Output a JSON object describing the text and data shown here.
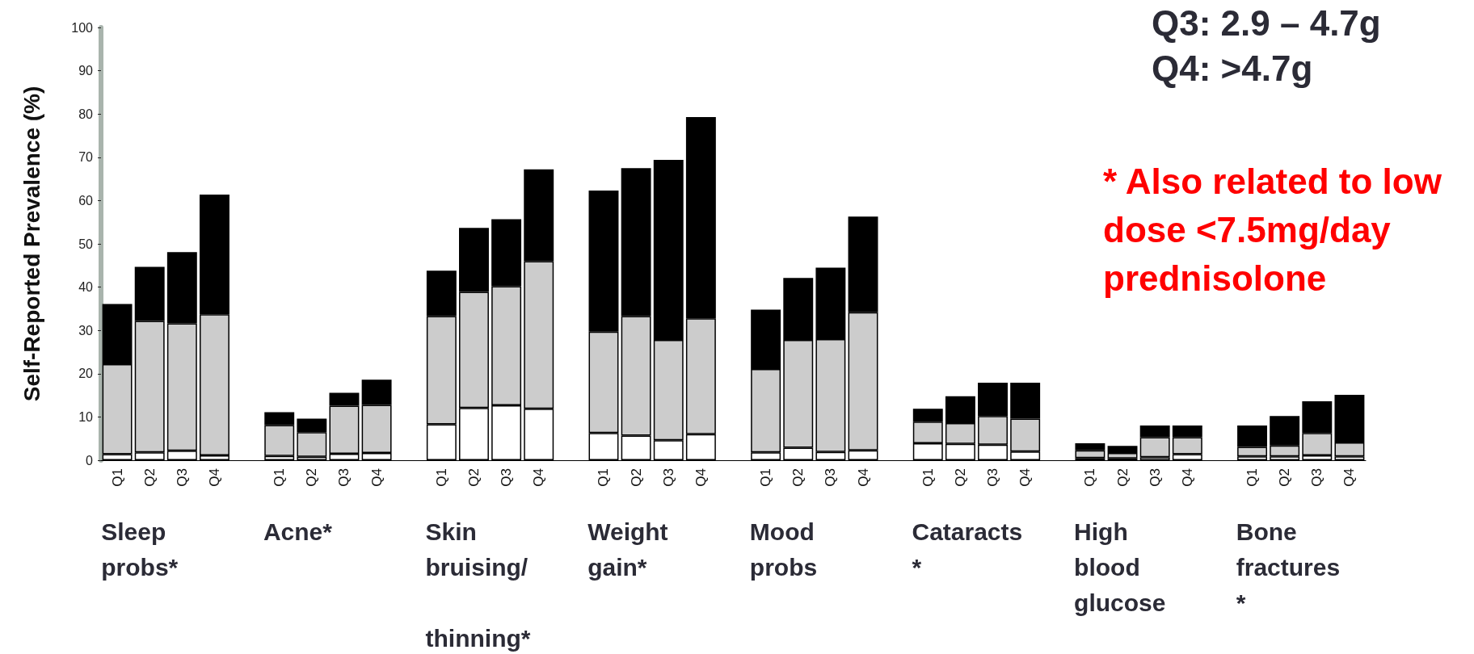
{
  "chart_data": {
    "type": "bar",
    "stacked": true,
    "ylabel": "Self-Reported Prevalence (%)",
    "categories": [
      "Q1",
      "Q2",
      "Q3",
      "Q4",
      null,
      "Q1",
      "Q2",
      "Q3",
      "Q4",
      null,
      "Q1",
      "Q2",
      "Q3",
      "Q4",
      null,
      "Q1",
      "Q2",
      "Q3",
      "Q4",
      null,
      "Q1",
      "Q2",
      "Q3",
      "Q4",
      null,
      "Q1",
      "Q2",
      "Q3",
      "Q4",
      null,
      "Q1",
      "Q2",
      "Q3",
      "Q4",
      null,
      "Q1",
      "Q2",
      "Q3",
      "Q4"
    ],
    "series": [
      {
        "color": "#ffffff",
        "values": [
          1.4,
          1.8,
          2.2,
          1.1,
          null,
          1.0,
          0.8,
          1.5,
          1.7,
          null,
          8.3,
          12.1,
          12.7,
          11.9,
          null,
          6.3,
          5.7,
          4.6,
          6.0,
          null,
          1.8,
          2.9,
          1.9,
          2.3,
          null,
          3.9,
          3.8,
          3.6,
          2.0,
          null,
          0.5,
          0.4,
          0.7,
          1.4,
          null,
          0.9,
          0.9,
          1.1,
          0.9
        ]
      },
      {
        "color": "#cccccc",
        "values": [
          20.8,
          30.4,
          29.4,
          32.6,
          null,
          7.1,
          5.7,
          11.1,
          11.1,
          null,
          25.0,
          26.8,
          27.5,
          34.1,
          null,
          23.4,
          27.6,
          23.2,
          26.8,
          null,
          19.3,
          24.9,
          26.1,
          31.9,
          null,
          5.0,
          4.8,
          6.6,
          7.6,
          null,
          1.8,
          1.3,
          4.6,
          3.9,
          null,
          2.2,
          2.5,
          5.2,
          3.2
        ]
      },
      {
        "color": "#000000",
        "values": [
          13.9,
          12.5,
          16.5,
          27.7,
          null,
          3.0,
          3.1,
          3.0,
          5.8,
          null,
          10.5,
          14.8,
          15.5,
          21.2,
          null,
          32.6,
          34.2,
          41.6,
          46.5,
          null,
          13.7,
          14.3,
          16.5,
          22.1,
          null,
          3.0,
          6.2,
          7.7,
          8.3,
          null,
          1.6,
          1.6,
          2.7,
          2.7,
          null,
          4.9,
          6.8,
          7.3,
          11.0
        ]
      }
    ],
    "ylim": [
      0,
      100
    ],
    "yticks": [
      0,
      10,
      20,
      30,
      40,
      50,
      60,
      70,
      80,
      90,
      100
    ],
    "grid": false,
    "annotations": [
      "Sleep probs*",
      "Acne*",
      "Skin bruising/ thinning*",
      "Weight gain*",
      "Mood probs",
      "Cataracts*",
      "High blood glucose",
      "Bone fractures*",
      "Q3: 2.9 – 4.7g",
      "Q4: >4.7g",
      "* Also related to low dose <7.5mg/day prednisolone"
    ]
  }
}
